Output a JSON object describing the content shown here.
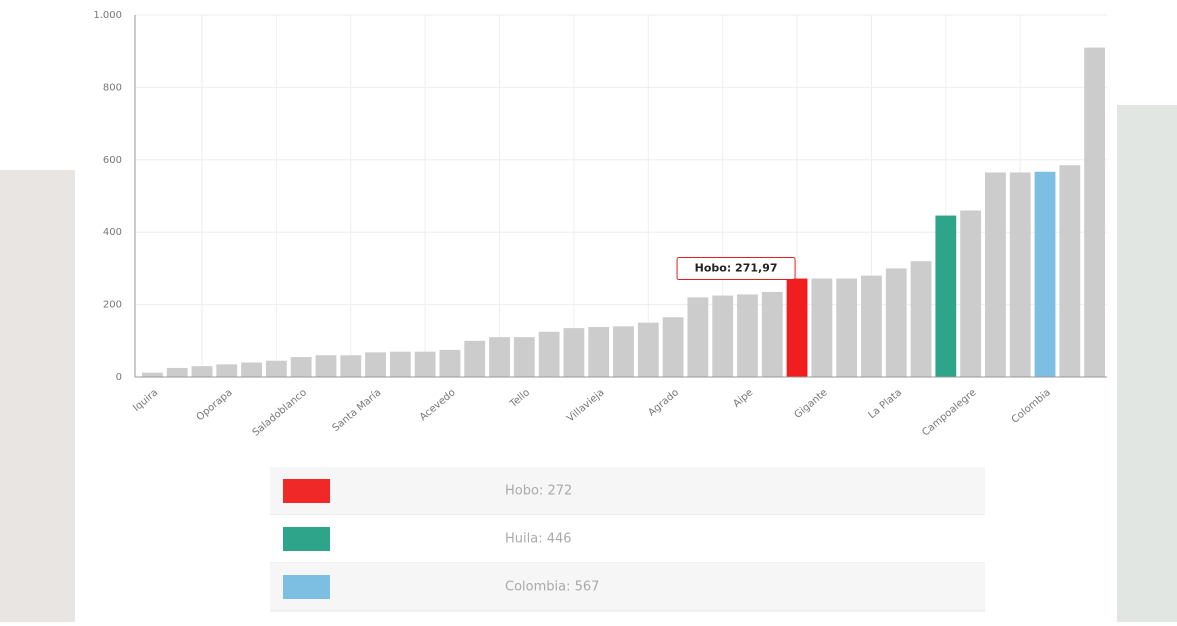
{
  "chart_data": {
    "type": "bar",
    "categories": [
      "Iquira",
      null,
      null,
      "Oporapa",
      null,
      null,
      "Saladoblanco",
      null,
      null,
      "Santa María",
      null,
      null,
      "Acevedo",
      null,
      null,
      "Tello",
      null,
      null,
      "Villavieja",
      null,
      null,
      "Agrado",
      null,
      null,
      "Aipe",
      null,
      null,
      "Gigante",
      null,
      null,
      "La Plata",
      null,
      null,
      "Campoalegre",
      null,
      null,
      "Colombia",
      null,
      null
    ],
    "values": [
      12,
      25,
      30,
      35,
      40,
      45,
      55,
      60,
      60,
      68,
      70,
      70,
      75,
      100,
      110,
      110,
      125,
      135,
      138,
      140,
      150,
      165,
      220,
      225,
      228,
      235,
      271.97,
      272,
      272,
      280,
      300,
      320,
      446,
      460,
      565,
      565,
      567,
      585,
      910
    ],
    "value_labels": [
      null,
      null,
      null,
      null,
      null,
      null,
      null,
      null,
      null,
      null,
      null,
      null,
      null,
      null,
      null,
      null,
      null,
      null,
      null,
      null,
      null,
      null,
      null,
      null,
      null,
      null,
      "Hobo: 271,97",
      null,
      null,
      null,
      null,
      null,
      null,
      null,
      null,
      null,
      null,
      null,
      null
    ],
    "colors": [
      "#cccccc",
      "#cccccc",
      "#cccccc",
      "#cccccc",
      "#cccccc",
      "#cccccc",
      "#cccccc",
      "#cccccc",
      "#cccccc",
      "#cccccc",
      "#cccccc",
      "#cccccc",
      "#cccccc",
      "#cccccc",
      "#cccccc",
      "#cccccc",
      "#cccccc",
      "#cccccc",
      "#cccccc",
      "#cccccc",
      "#cccccc",
      "#cccccc",
      "#cccccc",
      "#cccccc",
      "#cccccc",
      "#cccccc",
      "#f01e1e",
      "#cccccc",
      "#cccccc",
      "#cccccc",
      "#cccccc",
      "#cccccc",
      "#2ea58a",
      "#cccccc",
      "#cccccc",
      "#cccccc",
      "#7dbfe3",
      "#cccccc",
      "#cccccc"
    ],
    "ylim": [
      0,
      1000
    ],
    "yticks": [
      0,
      200,
      400,
      600,
      800,
      {
        "value": 1000,
        "label": "1.000"
      }
    ],
    "grid": true
  },
  "summary_table": {
    "rows": [
      {
        "color": "#f02828",
        "text": "Hobo: 272"
      },
      {
        "color": "#2ea58a",
        "text": "Huila: 446"
      },
      {
        "color": "#7dbfe3",
        "text": "Colombia: 567"
      }
    ]
  }
}
